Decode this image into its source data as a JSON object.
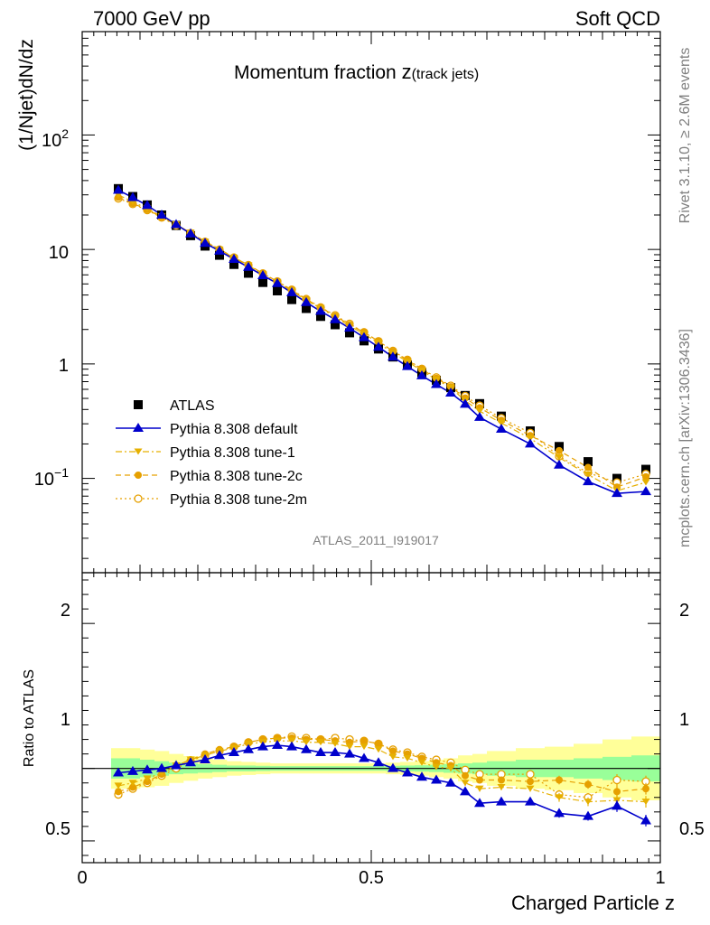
{
  "header": {
    "left": "7000 GeV pp",
    "right": "Soft QCD"
  },
  "side_text": {
    "rivet": "Rivet 3.1.10, ≥ 2.6M events",
    "source": "mcplots.cern.ch [arXiv:1306.3436]"
  },
  "chart_data": {
    "type": "line",
    "title_main": "Momentum fraction ",
    "title_var": "z",
    "title_sub": "(track jets)",
    "analysis_label": "ATLAS_2011_I919017",
    "xlabel": "Charged Particle z",
    "ylabel": "(1/Njet)dN/dz",
    "ratio_ylabel": "Ratio to ATLAS",
    "x_ticks": [
      "0",
      "0.5",
      "1"
    ],
    "y_ticks": [
      {
        "base": "10",
        "exp": "−1"
      },
      {
        "base": "1",
        "exp": ""
      },
      {
        "base": "10",
        "exp": ""
      },
      {
        "base": "10",
        "exp": "2"
      }
    ],
    "ratio_ticks": [
      "0.5",
      "1",
      "2"
    ],
    "xlim": [
      0,
      1
    ],
    "ylim": [
      0.015,
      800
    ],
    "yscale": "log",
    "ratio_ylim": [
      0.35,
      2.35
    ],
    "x": [
      0.0625,
      0.0875,
      0.1125,
      0.1375,
      0.1625,
      0.1875,
      0.2125,
      0.2375,
      0.2625,
      0.2875,
      0.3125,
      0.3375,
      0.3625,
      0.3875,
      0.4125,
      0.4375,
      0.4625,
      0.4875,
      0.5125,
      0.5375,
      0.5625,
      0.5875,
      0.6125,
      0.6375,
      0.6625,
      0.6875,
      0.725,
      0.775,
      0.825,
      0.875,
      0.925,
      0.975
    ],
    "bin_edges": [
      0.05,
      0.075,
      0.1,
      0.125,
      0.15,
      0.175,
      0.2,
      0.225,
      0.25,
      0.275,
      0.3,
      0.325,
      0.35,
      0.375,
      0.4,
      0.425,
      0.45,
      0.475,
      0.5,
      0.525,
      0.55,
      0.575,
      0.6,
      0.625,
      0.65,
      0.675,
      0.7,
      0.75,
      0.8,
      0.85,
      0.9,
      0.95,
      1.0
    ],
    "data": {
      "name": "ATLAS",
      "values": [
        34,
        29,
        24.5,
        20,
        16.2,
        13.2,
        10.7,
        8.9,
        7.4,
        6.2,
        5.15,
        4.35,
        3.65,
        3.05,
        2.6,
        2.2,
        1.87,
        1.59,
        1.35,
        1.15,
        0.98,
        0.84,
        0.72,
        0.62,
        0.53,
        0.45,
        0.35,
        0.26,
        0.19,
        0.14,
        0.1,
        0.12
      ]
    },
    "series": [
      {
        "name": "Pythia 8.308 default",
        "color": "#0000cc",
        "marker": "triangle-up",
        "line": "solid",
        "ratio": [
          0.97,
          0.98,
          0.99,
          1.0,
          1.02,
          1.04,
          1.06,
          1.09,
          1.11,
          1.13,
          1.15,
          1.16,
          1.15,
          1.13,
          1.11,
          1.11,
          1.1,
          1.07,
          1.04,
          1.0,
          0.97,
          0.94,
          0.92,
          0.9,
          0.84,
          0.76,
          0.77,
          0.77,
          0.69,
          0.67,
          0.74,
          0.64
        ],
        "ratio_err": [
          0.01,
          0.01,
          0.01,
          0.01,
          0.01,
          0.01,
          0.01,
          0.01,
          0.01,
          0.01,
          0.01,
          0.01,
          0.01,
          0.01,
          0.01,
          0.01,
          0.01,
          0.01,
          0.01,
          0.01,
          0.01,
          0.01,
          0.01,
          0.02,
          0.02,
          0.02,
          0.02,
          0.02,
          0.03,
          0.03,
          0.04,
          0.04
        ]
      },
      {
        "name": "Pythia 8.308 tune-1",
        "color": "#e6b000",
        "marker": "triangle-down",
        "line": "dashdot",
        "ratio": [
          0.88,
          0.9,
          0.93,
          0.97,
          1.02,
          1.06,
          1.09,
          1.12,
          1.14,
          1.17,
          1.18,
          1.19,
          1.19,
          1.18,
          1.18,
          1.17,
          1.15,
          1.15,
          1.13,
          1.08,
          1.07,
          1.04,
          1.01,
          1.0,
          0.9,
          0.86,
          0.87,
          0.86,
          0.8,
          0.77,
          0.78,
          0.77
        ],
        "ratio_err": [
          0.01,
          0.01,
          0.01,
          0.01,
          0.01,
          0.01,
          0.01,
          0.01,
          0.01,
          0.01,
          0.01,
          0.01,
          0.01,
          0.01,
          0.01,
          0.01,
          0.01,
          0.01,
          0.01,
          0.01,
          0.01,
          0.01,
          0.01,
          0.02,
          0.02,
          0.02,
          0.02,
          0.02,
          0.03,
          0.03,
          0.04,
          0.04
        ]
      },
      {
        "name": "Pythia 8.308 tune-2c",
        "color": "#e6a000",
        "marker": "circle",
        "line": "dashed",
        "ratio": [
          0.84,
          0.87,
          0.91,
          0.96,
          1.02,
          1.06,
          1.1,
          1.13,
          1.15,
          1.18,
          1.2,
          1.21,
          1.21,
          1.2,
          1.2,
          1.19,
          1.18,
          1.19,
          1.17,
          1.12,
          1.1,
          1.07,
          1.04,
          1.02,
          0.95,
          0.92,
          0.92,
          0.91,
          0.92,
          0.89,
          0.84,
          0.86
        ],
        "ratio_err": [
          0.01,
          0.01,
          0.01,
          0.01,
          0.01,
          0.01,
          0.01,
          0.01,
          0.01,
          0.01,
          0.01,
          0.01,
          0.01,
          0.01,
          0.01,
          0.01,
          0.01,
          0.01,
          0.01,
          0.01,
          0.01,
          0.01,
          0.01,
          0.02,
          0.02,
          0.02,
          0.02,
          0.02,
          0.03,
          0.03,
          0.04,
          0.04
        ]
      },
      {
        "name": "Pythia 8.308 tune-2m",
        "color": "#e6a000",
        "marker": "open-circle",
        "line": "dotted",
        "ratio": [
          0.82,
          0.86,
          0.9,
          0.95,
          1.0,
          1.05,
          1.09,
          1.12,
          1.15,
          1.18,
          1.2,
          1.21,
          1.22,
          1.21,
          1.2,
          1.21,
          1.2,
          1.19,
          1.17,
          1.13,
          1.11,
          1.08,
          1.06,
          1.04,
          0.99,
          0.96,
          0.96,
          0.96,
          0.82,
          0.8,
          0.92,
          0.91
        ],
        "ratio_err": [
          0.01,
          0.01,
          0.01,
          0.01,
          0.01,
          0.01,
          0.01,
          0.01,
          0.01,
          0.01,
          0.01,
          0.01,
          0.01,
          0.01,
          0.01,
          0.01,
          0.01,
          0.01,
          0.01,
          0.01,
          0.01,
          0.01,
          0.01,
          0.02,
          0.02,
          0.02,
          0.02,
          0.02,
          0.03,
          0.03,
          0.04,
          0.04
        ]
      }
    ],
    "uncertainty_bands": {
      "stat_color": "#99ff99",
      "total_color": "#ffff99",
      "stat": [
        0.07,
        0.07,
        0.06,
        0.05,
        0.04,
        0.035,
        0.03,
        0.025,
        0.02,
        0.02,
        0.018,
        0.016,
        0.016,
        0.016,
        0.016,
        0.016,
        0.016,
        0.016,
        0.016,
        0.018,
        0.02,
        0.022,
        0.025,
        0.03,
        0.035,
        0.04,
        0.05,
        0.06,
        0.06,
        0.07,
        0.08,
        0.09
      ],
      "total": [
        0.14,
        0.14,
        0.13,
        0.12,
        0.1,
        0.085,
        0.07,
        0.06,
        0.05,
        0.045,
        0.04,
        0.035,
        0.035,
        0.035,
        0.035,
        0.035,
        0.035,
        0.035,
        0.035,
        0.04,
        0.045,
        0.05,
        0.06,
        0.07,
        0.09,
        0.1,
        0.12,
        0.14,
        0.15,
        0.17,
        0.2,
        0.22
      ]
    },
    "legend_position": "lower-left"
  }
}
